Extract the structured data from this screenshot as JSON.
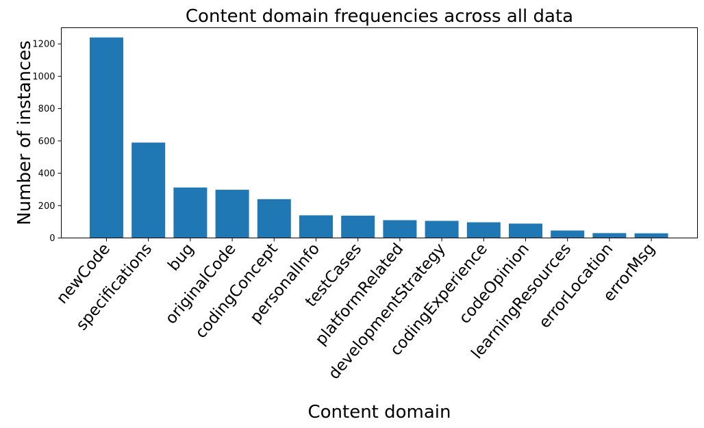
{
  "chart_data": {
    "type": "bar",
    "title": "Content domain frequencies across all data",
    "xlabel": "Content domain",
    "ylabel": "Number of instances",
    "categories": [
      "newCode",
      "specifications",
      "bug",
      "originalCode",
      "codingConcept",
      "personalInfo",
      "testCases",
      "platformRelated",
      "developmentStrategy",
      "codingExperience",
      "codeOpinion",
      "learningResources",
      "errorLocation",
      "errorMsg"
    ],
    "values": [
      1240,
      590,
      312,
      298,
      240,
      140,
      138,
      110,
      106,
      97,
      89,
      46,
      30,
      29
    ],
    "ylim": [
      0,
      1300
    ],
    "yticks": [
      0,
      200,
      400,
      600,
      800,
      1000,
      1200
    ],
    "bar_color": "#1f77b4",
    "grid": false,
    "legend": "none"
  }
}
